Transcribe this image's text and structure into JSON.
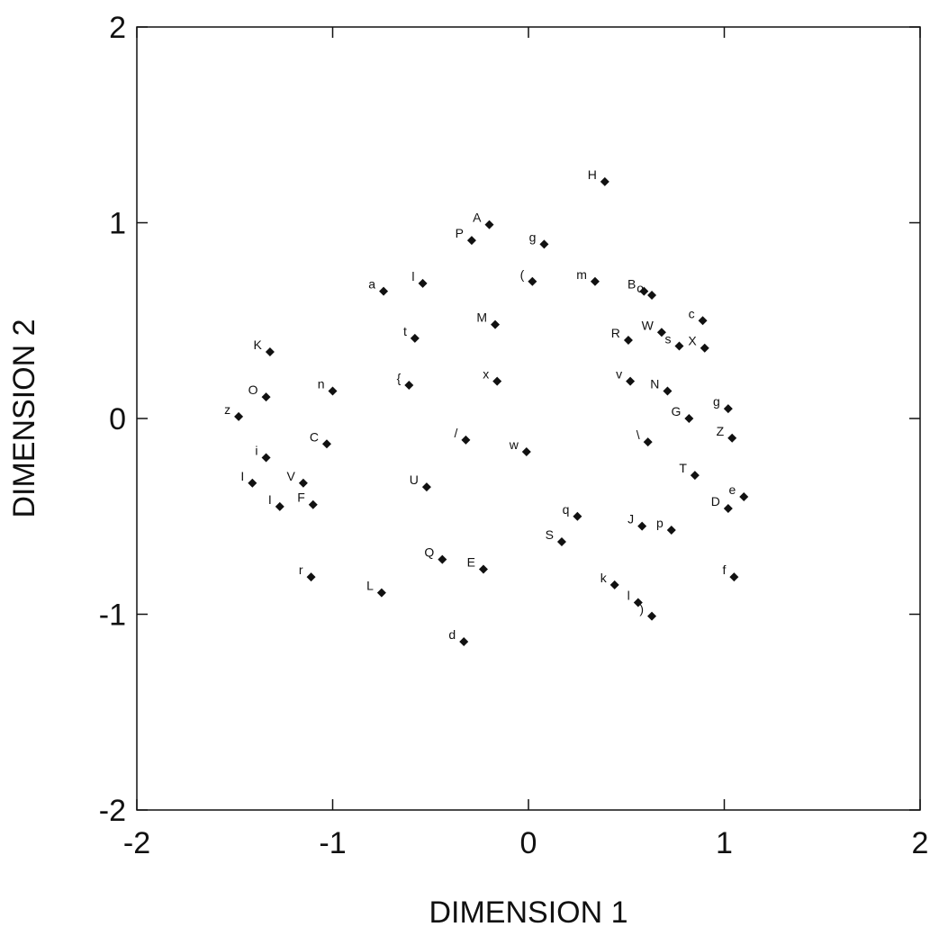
{
  "chart_data": {
    "type": "scatter",
    "title": "",
    "xlabel": "DIMENSION 1",
    "ylabel": "DIMENSION 2",
    "xlim": [
      -2,
      2
    ],
    "ylim": [
      -2,
      2
    ],
    "x_ticks": [
      -2,
      -1,
      0,
      1,
      2
    ],
    "y_ticks": [
      -2,
      -1,
      0,
      1,
      2
    ],
    "x_tick_labels": [
      "-2",
      "-1",
      "0",
      "1",
      "2"
    ],
    "y_tick_labels": [
      "-2",
      "-1",
      "0",
      "1",
      "2"
    ],
    "grid": false,
    "legend": "none",
    "marker": "diamond",
    "marker_color": "#111111",
    "points": [
      {
        "label": "H",
        "x": 0.39,
        "y": 1.21
      },
      {
        "label": "A",
        "x": -0.2,
        "y": 0.99
      },
      {
        "label": "P",
        "x": -0.29,
        "y": 0.91
      },
      {
        "label": "g",
        "x": 0.08,
        "y": 0.89
      },
      {
        "label": "a",
        "x": -0.74,
        "y": 0.65
      },
      {
        "label": "l",
        "x": -0.54,
        "y": 0.69
      },
      {
        "label": "(",
        "x": 0.02,
        "y": 0.7
      },
      {
        "label": "m",
        "x": 0.34,
        "y": 0.7
      },
      {
        "label": "B",
        "x": 0.59,
        "y": 0.65
      },
      {
        "label": "o",
        "x": 0.63,
        "y": 0.63
      },
      {
        "label": "M",
        "x": -0.17,
        "y": 0.48
      },
      {
        "label": "c",
        "x": 0.89,
        "y": 0.5
      },
      {
        "label": "W",
        "x": 0.68,
        "y": 0.44
      },
      {
        "label": "R",
        "x": 0.51,
        "y": 0.4
      },
      {
        "label": "s",
        "x": 0.77,
        "y": 0.37
      },
      {
        "label": "X",
        "x": 0.9,
        "y": 0.36
      },
      {
        "label": "t",
        "x": -0.58,
        "y": 0.41
      },
      {
        "label": "K",
        "x": -1.32,
        "y": 0.34
      },
      {
        "label": "{",
        "x": -0.61,
        "y": 0.17
      },
      {
        "label": "x",
        "x": -0.16,
        "y": 0.19
      },
      {
        "label": "v",
        "x": 0.52,
        "y": 0.19
      },
      {
        "label": "N",
        "x": 0.71,
        "y": 0.14
      },
      {
        "label": "n",
        "x": -1.0,
        "y": 0.14
      },
      {
        "label": "O",
        "x": -1.34,
        "y": 0.11
      },
      {
        "label": "z",
        "x": -1.48,
        "y": 0.01
      },
      {
        "label": "G",
        "x": 0.82,
        "y": 0.0
      },
      {
        "label": "g",
        "x": 1.02,
        "y": 0.05
      },
      {
        "label": "/",
        "x": -0.32,
        "y": -0.11
      },
      {
        "label": "\\",
        "x": 0.61,
        "y": -0.12
      },
      {
        "label": "C",
        "x": -1.03,
        "y": -0.13
      },
      {
        "label": "w",
        "x": -0.01,
        "y": -0.17
      },
      {
        "label": "Z",
        "x": 1.04,
        "y": -0.1
      },
      {
        "label": "i",
        "x": -1.34,
        "y": -0.2
      },
      {
        "label": "I",
        "x": -1.41,
        "y": -0.33
      },
      {
        "label": "V",
        "x": -1.15,
        "y": -0.33
      },
      {
        "label": "U",
        "x": -0.52,
        "y": -0.35
      },
      {
        "label": "T",
        "x": 0.85,
        "y": -0.29
      },
      {
        "label": "e",
        "x": 1.1,
        "y": -0.4
      },
      {
        "label": "D",
        "x": 1.02,
        "y": -0.46
      },
      {
        "label": "I",
        "x": -1.27,
        "y": -0.45
      },
      {
        "label": "F",
        "x": -1.1,
        "y": -0.44
      },
      {
        "label": "q",
        "x": 0.25,
        "y": -0.5
      },
      {
        "label": "J",
        "x": 0.58,
        "y": -0.55
      },
      {
        "label": "p",
        "x": 0.73,
        "y": -0.57
      },
      {
        "label": "S",
        "x": 0.17,
        "y": -0.63
      },
      {
        "label": "Q",
        "x": -0.44,
        "y": -0.72
      },
      {
        "label": "E",
        "x": -0.23,
        "y": -0.77
      },
      {
        "label": "r",
        "x": -1.11,
        "y": -0.81
      },
      {
        "label": "L",
        "x": -0.75,
        "y": -0.89
      },
      {
        "label": "f",
        "x": 1.05,
        "y": -0.81
      },
      {
        "label": "k",
        "x": 0.44,
        "y": -0.85
      },
      {
        "label": "l",
        "x": 0.56,
        "y": -0.94
      },
      {
        "label": ")",
        "x": 0.63,
        "y": -1.01
      },
      {
        "label": "d",
        "x": -0.33,
        "y": -1.14
      }
    ]
  }
}
